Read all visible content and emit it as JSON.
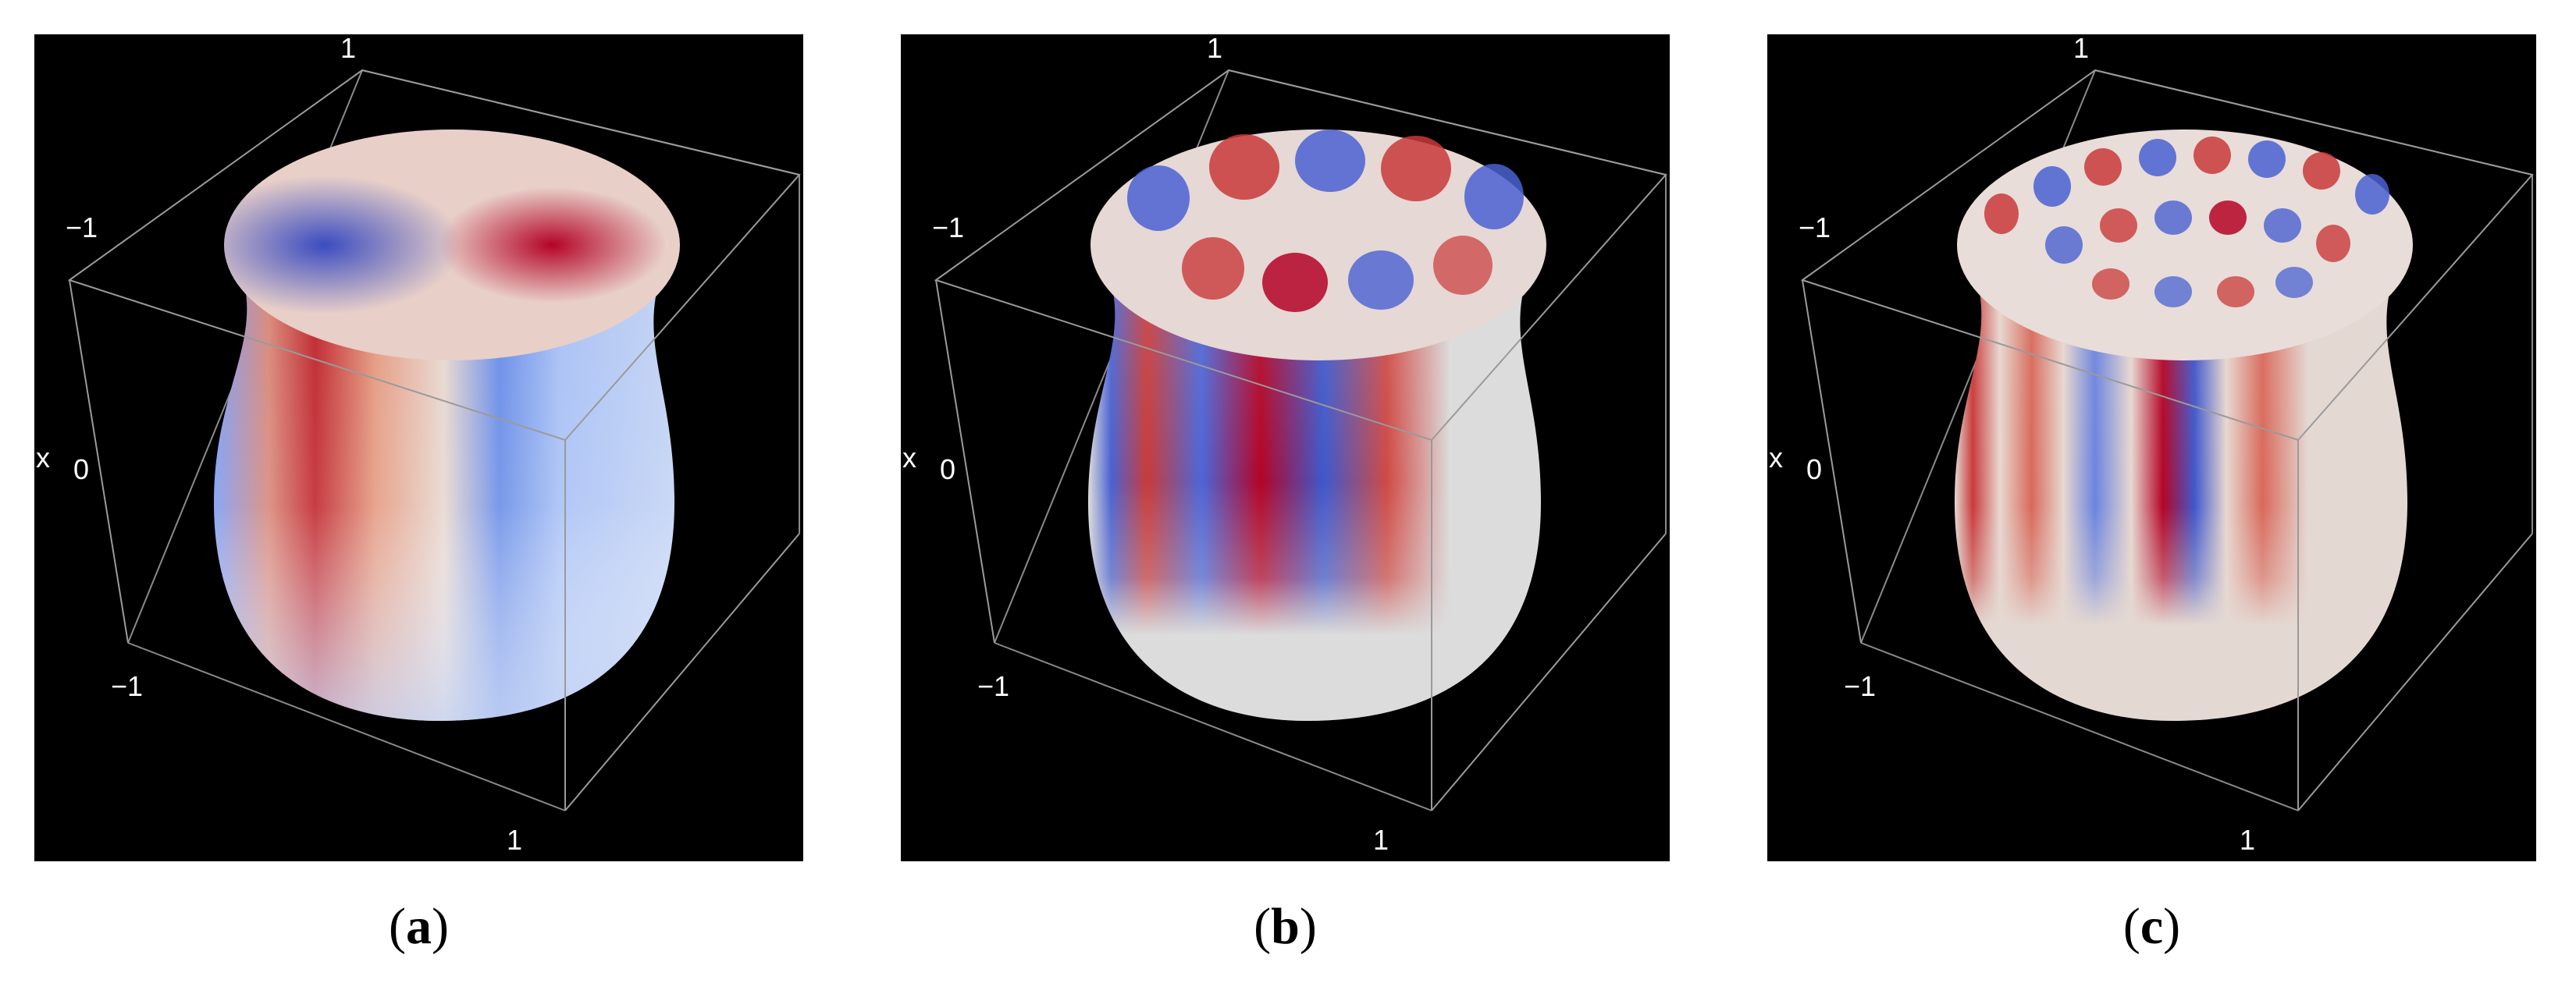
{
  "panels": [
    {
      "id": "a",
      "caption_letter": "a",
      "axis_label": "x",
      "tick_top": "1",
      "tick_left": "−1",
      "tick_mid": "0",
      "tick_bottom_left": "−1",
      "tick_bottom_right": "1",
      "mode_cols": 2,
      "mode_rows": 1
    },
    {
      "id": "b",
      "caption_letter": "b",
      "axis_label": "x",
      "tick_top": "1",
      "tick_left": "−1",
      "tick_mid": "0",
      "tick_bottom_left": "−1",
      "tick_bottom_right": "1",
      "mode_cols": 4,
      "mode_rows": 2
    },
    {
      "id": "c",
      "caption_letter": "c",
      "axis_label": "x",
      "tick_top": "1",
      "tick_left": "−1",
      "tick_mid": "0",
      "tick_bottom_left": "−1",
      "tick_bottom_right": "1",
      "mode_cols": 6,
      "mode_rows": 3
    }
  ],
  "colors": {
    "background": "#000000",
    "box_lines": "#9a9a9a",
    "surface_neutral": "#dcdcdc",
    "positive": "#b40426",
    "negative": "#3b4cc0"
  }
}
